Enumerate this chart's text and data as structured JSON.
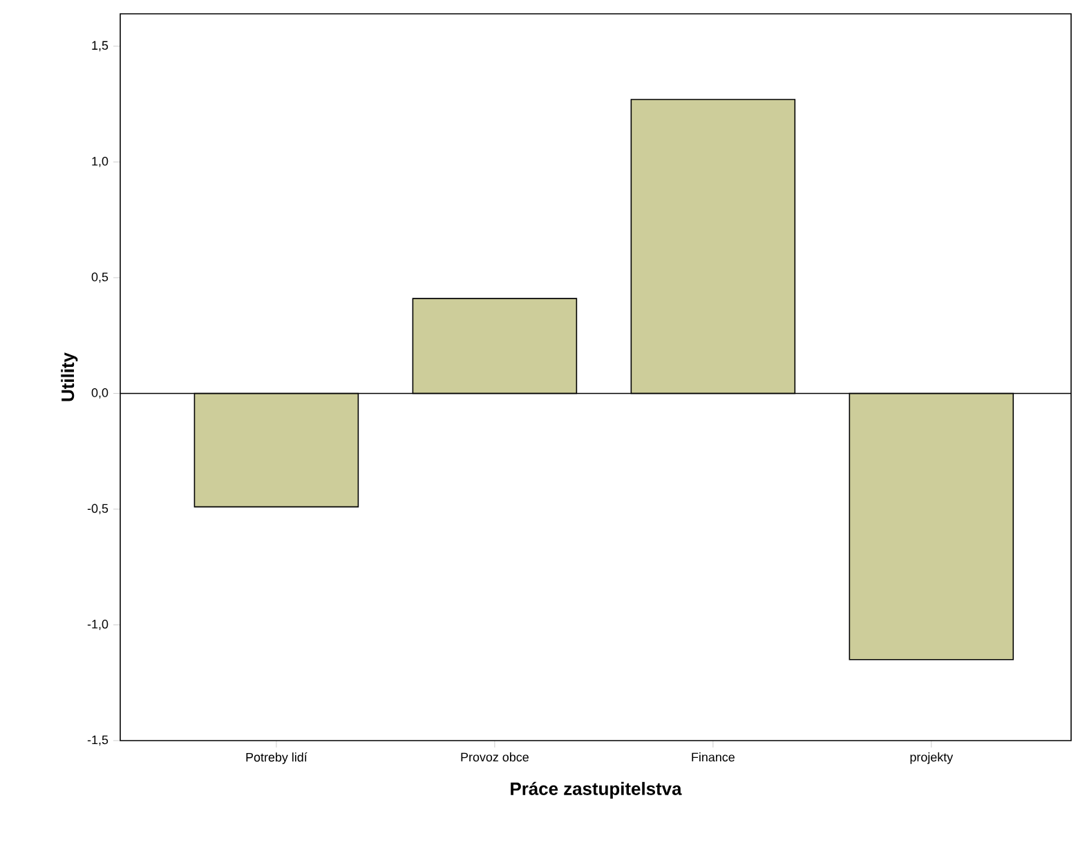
{
  "chart_data": {
    "type": "bar",
    "xlabel": "Práce zastupitelstva",
    "ylabel": "Utility",
    "categories": [
      "Potreby lidí",
      "Provoz obce",
      "Finance",
      "projekty"
    ],
    "values": [
      -0.49,
      0.41,
      1.27,
      -1.15
    ],
    "color": "#cdcd9a",
    "ylim": [
      -1.5,
      1.64
    ],
    "yticks": [
      {
        "value": -1.5,
        "label": "-1,5"
      },
      {
        "value": -1.0,
        "label": "-1,0"
      },
      {
        "value": -0.5,
        "label": "-0,5"
      },
      {
        "value": 0.0,
        "label": "0,0"
      },
      {
        "value": 0.5,
        "label": "0,5"
      },
      {
        "value": 1.0,
        "label": "1,0"
      },
      {
        "value": 1.5,
        "label": "1,5"
      }
    ],
    "ref_lines": [
      {
        "axis": "y",
        "value": 0
      }
    ],
    "grid": false
  }
}
